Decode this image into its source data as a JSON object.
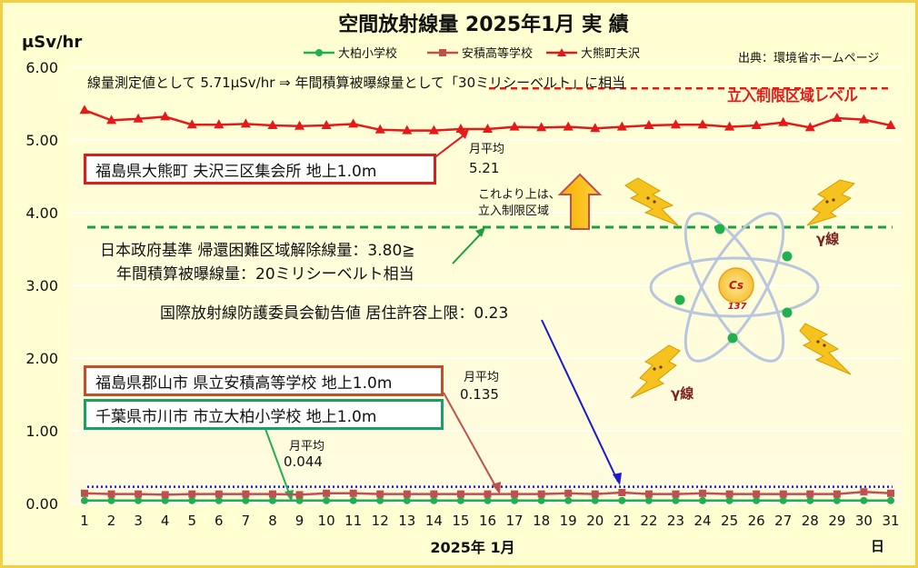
{
  "title": "空間放射線量  2025年1月 実 績",
  "unit_label": "μSv/hr",
  "source": "出典：環境省ホームページ",
  "legend": [
    {
      "name": "大柏小学校",
      "color": "#20b050",
      "marker": "circle"
    },
    {
      "name": "安積高等学校",
      "color": "#c0504d",
      "marker": "square"
    },
    {
      "name": "大熊町夫沢",
      "color": "#e41a1a",
      "marker": "triangle"
    }
  ],
  "top_note": "線量測定値として 5.71μSv/hr ⇒  年間積算被曝線量として「30ミリシーベルト」に相当",
  "restricted_label": "立入制限区域レベル",
  "okuma_box": "福島県大熊町  夫沢三区集会所  地上1.0m",
  "okuma_avg_label": "月平均",
  "okuma_avg_value": "5.21",
  "above_line_1": "これより上は、",
  "above_line_2": "立入制限区域",
  "govt_line_1": "日本政府基準  帰還困難区域解除線量：3.80≧",
  "govt_line_2": "年間積算被曝線量：20ミリシーベルト相当",
  "icrp_text": "国際放射線防護委員会勧告値  居住許容上限：0.23",
  "koriyama_box": "福島県郡山市  県立安積高等学校  地上1.0m",
  "koriyama_avg_label": "月平均",
  "koriyama_avg_value": "0.135",
  "ichikawa_box": "千葉県市川市  市立大柏小学校  地上1.0m",
  "ichikawa_avg_label": "月平均",
  "ichikawa_avg_value": "0.044",
  "gamma_label": "γ線",
  "cs_label": "Cs",
  "cs_mass": "137",
  "x_title": "2025年  1月",
  "x_unit": "日",
  "colors": {
    "okuma": "#e41a1a",
    "koriyama": "#c0504d",
    "ichikawa": "#20b050",
    "restricted": "#e41a1a",
    "govt": "#1aa03c",
    "icrp": "#1a1ad0",
    "grid": "#ffffff"
  },
  "chart_data": {
    "type": "line",
    "title": "空間放射線量  2025年1月 実 績",
    "xlabel": "2025年  1月",
    "ylabel": "μSv/hr",
    "ylim": [
      0,
      6
    ],
    "yticks": [
      "0.00",
      "1.00",
      "2.00",
      "3.00",
      "4.00",
      "5.00",
      "6.00"
    ],
    "x": [
      1,
      2,
      3,
      4,
      5,
      6,
      7,
      8,
      9,
      10,
      11,
      12,
      13,
      14,
      15,
      16,
      17,
      18,
      19,
      20,
      21,
      22,
      23,
      24,
      25,
      26,
      27,
      28,
      29,
      30,
      31
    ],
    "series": [
      {
        "name": "大柏小学校",
        "values": [
          0.04,
          0.04,
          0.04,
          0.04,
          0.04,
          0.04,
          0.04,
          0.04,
          0.04,
          0.04,
          0.04,
          0.04,
          0.04,
          0.04,
          0.04,
          0.04,
          0.04,
          0.04,
          0.04,
          0.04,
          0.04,
          0.04,
          0.04,
          0.04,
          0.04,
          0.04,
          0.04,
          0.04,
          0.04,
          0.04,
          0.04
        ]
      },
      {
        "name": "安積高等学校",
        "values": [
          0.14,
          0.13,
          0.13,
          0.12,
          0.13,
          0.13,
          0.13,
          0.13,
          0.12,
          0.14,
          0.14,
          0.13,
          0.13,
          0.13,
          0.13,
          0.13,
          0.13,
          0.13,
          0.14,
          0.13,
          0.15,
          0.13,
          0.13,
          0.14,
          0.13,
          0.13,
          0.13,
          0.13,
          0.13,
          0.16,
          0.14
        ]
      },
      {
        "name": "大熊町夫沢",
        "values": [
          5.41,
          5.27,
          5.29,
          5.32,
          5.21,
          5.21,
          5.22,
          5.2,
          5.19,
          5.2,
          5.22,
          5.14,
          5.13,
          5.13,
          5.15,
          5.15,
          5.18,
          5.17,
          5.18,
          5.16,
          5.18,
          5.2,
          5.21,
          5.21,
          5.18,
          5.2,
          5.24,
          5.17,
          5.3,
          5.28,
          5.2
        ]
      }
    ],
    "reference_lines": [
      {
        "label": "立入制限区域レベル",
        "value": 5.71
      },
      {
        "label": "帰還困難区域解除線量",
        "value": 3.8
      },
      {
        "label": "居住許容上限",
        "value": 0.23
      }
    ],
    "grid": true,
    "legend_position": "top"
  }
}
